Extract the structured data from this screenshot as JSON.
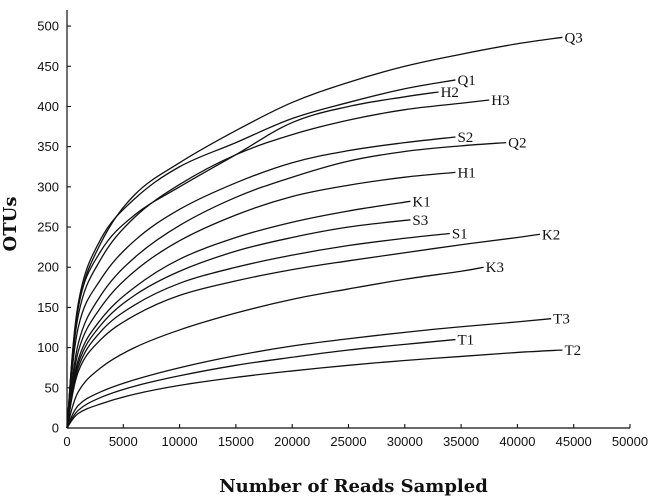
{
  "chart_data": {
    "type": "line",
    "xlabel": "Number of Reads Sampled",
    "ylabel": "OTUs",
    "xlim": [
      0,
      50000
    ],
    "ylim": [
      0,
      520
    ],
    "xticks": [
      0,
      5000,
      10000,
      15000,
      20000,
      25000,
      30000,
      35000,
      40000,
      45000,
      50000
    ],
    "yticks": [
      0,
      50,
      100,
      150,
      200,
      250,
      300,
      350,
      400,
      450,
      500
    ],
    "grid": false,
    "legend": "inline labels at line ends",
    "series": [
      {
        "name": "Q3",
        "x": [
          0,
          1000,
          3000,
          6000,
          10000,
          15000,
          20000,
          25000,
          30000,
          35000,
          40000,
          44000
        ],
        "values": [
          0,
          150,
          230,
          290,
          330,
          370,
          405,
          430,
          450,
          465,
          478,
          486
        ]
      },
      {
        "name": "Q1",
        "x": [
          0,
          1000,
          3000,
          6000,
          10000,
          15000,
          20000,
          25000,
          30000,
          34500
        ],
        "values": [
          0,
          155,
          235,
          285,
          325,
          355,
          385,
          405,
          422,
          433
        ]
      },
      {
        "name": "H2",
        "x": [
          0,
          1000,
          3000,
          6000,
          10000,
          15000,
          20000,
          25000,
          30000,
          33000
        ],
        "values": [
          0,
          150,
          220,
          265,
          300,
          340,
          380,
          400,
          412,
          418
        ]
      },
      {
        "name": "H3",
        "x": [
          0,
          1000,
          3000,
          6000,
          10000,
          15000,
          20000,
          25000,
          30000,
          35000,
          37500
        ],
        "values": [
          0,
          140,
          210,
          262,
          303,
          340,
          365,
          383,
          396,
          404,
          408
        ]
      },
      {
        "name": "S2",
        "x": [
          0,
          1000,
          3000,
          6000,
          10000,
          15000,
          20000,
          25000,
          30000,
          34500
        ],
        "values": [
          0,
          125,
          185,
          233,
          272,
          305,
          330,
          345,
          355,
          362
        ]
      },
      {
        "name": "Q2",
        "x": [
          0,
          1000,
          3000,
          6000,
          10000,
          15000,
          20000,
          25000,
          30000,
          35000,
          39000
        ],
        "values": [
          0,
          105,
          165,
          212,
          252,
          287,
          312,
          332,
          344,
          351,
          355
        ]
      },
      {
        "name": "H1",
        "x": [
          0,
          1000,
          3000,
          6000,
          10000,
          15000,
          20000,
          25000,
          30000,
          34500
        ],
        "values": [
          0,
          95,
          150,
          195,
          233,
          265,
          288,
          302,
          312,
          318
        ]
      },
      {
        "name": "K1",
        "x": [
          0,
          1000,
          3000,
          6000,
          10000,
          15000,
          20000,
          25000,
          30500
        ],
        "values": [
          0,
          85,
          135,
          175,
          210,
          237,
          256,
          270,
          282
        ]
      },
      {
        "name": "S3",
        "x": [
          0,
          1000,
          3000,
          6000,
          10000,
          15000,
          20000,
          25000,
          30500
        ],
        "values": [
          0,
          80,
          128,
          165,
          195,
          220,
          237,
          250,
          259
        ]
      },
      {
        "name": "S1",
        "x": [
          0,
          1000,
          3000,
          6000,
          10000,
          15000,
          20000,
          25000,
          30000,
          34000
        ],
        "values": [
          0,
          75,
          120,
          153,
          180,
          200,
          215,
          227,
          236,
          242
        ]
      },
      {
        "name": "K2",
        "x": [
          0,
          1000,
          3000,
          6000,
          10000,
          15000,
          20000,
          25000,
          30000,
          35000,
          40000,
          42000
        ],
        "values": [
          0,
          70,
          110,
          140,
          165,
          183,
          197,
          208,
          218,
          228,
          237,
          241
        ]
      },
      {
        "name": "K3",
        "x": [
          0,
          1000,
          3000,
          6000,
          10000,
          15000,
          20000,
          25000,
          30000,
          35000,
          37000
        ],
        "values": [
          0,
          45,
          75,
          100,
          122,
          143,
          160,
          173,
          185,
          195,
          200
        ]
      },
      {
        "name": "T3",
        "x": [
          0,
          1000,
          3000,
          6000,
          10000,
          15000,
          20000,
          25000,
          30000,
          35000,
          40000,
          43000
        ],
        "values": [
          0,
          28,
          45,
          60,
          75,
          90,
          102,
          111,
          119,
          126,
          132,
          136
        ]
      },
      {
        "name": "T1",
        "x": [
          0,
          1000,
          3000,
          6000,
          10000,
          15000,
          20000,
          25000,
          30000,
          34500
        ],
        "values": [
          0,
          22,
          38,
          52,
          65,
          78,
          88,
          97,
          104,
          110
        ]
      },
      {
        "name": "T2",
        "x": [
          0,
          1000,
          3000,
          6000,
          10000,
          15000,
          20000,
          25000,
          30000,
          35000,
          40000,
          44000
        ],
        "values": [
          0,
          18,
          30,
          42,
          53,
          63,
          71,
          78,
          84,
          89,
          94,
          97
        ]
      }
    ]
  }
}
